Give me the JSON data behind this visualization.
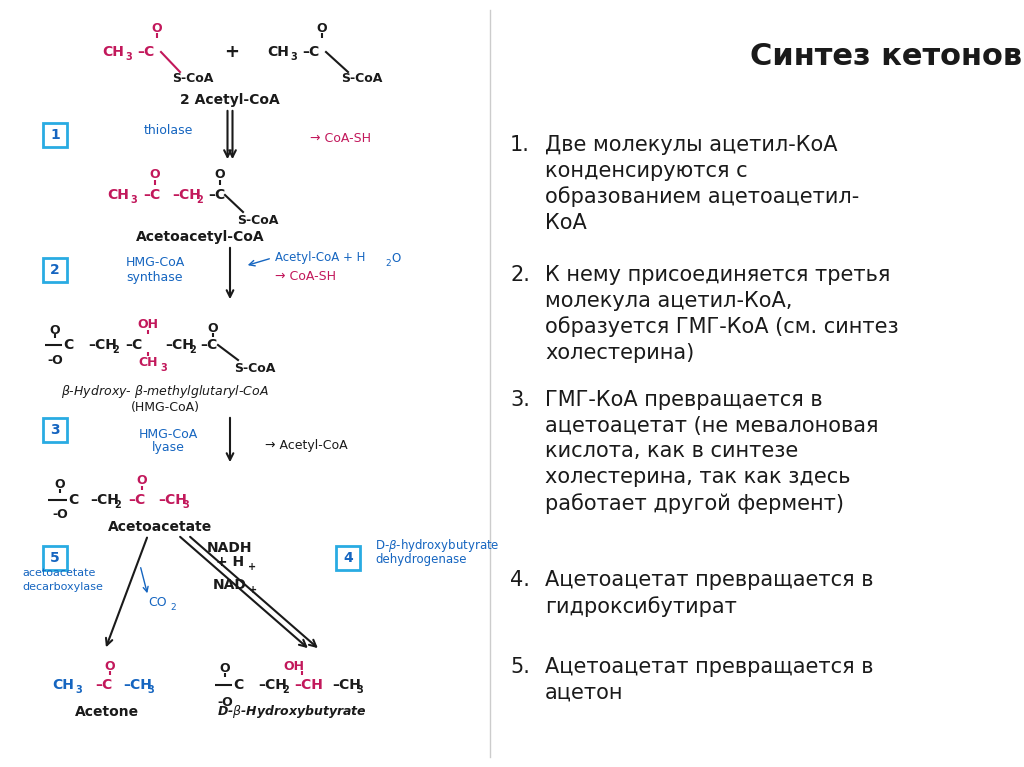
{
  "bg_color": "#ffffff",
  "crimson": "#C2185B",
  "blue": "#1565C0",
  "black": "#1a1a1a",
  "cyan_box": "#29ABE2",
  "title": "Синтез кетоновых тел",
  "items": [
    "Две молекулы ацетил-КоА\nконденсируются с\nобразованием ацетоацетил-\nКоА",
    "К нему присоединяется третья\nмолекула ацетил-КоА,\nобразуется ГМГ-КоА (см. синтез\nхолестерина)",
    "ГМГ-КоА превращается в\nацетоацетат (не мевалоновая\nкислота, как в синтезе\nхолестерина, так как здесь\nработает другой фермент)",
    "Ацетоацетат превращается в\nгидроксибутират",
    "Ацетоацетат превращается в\nацетон"
  ]
}
